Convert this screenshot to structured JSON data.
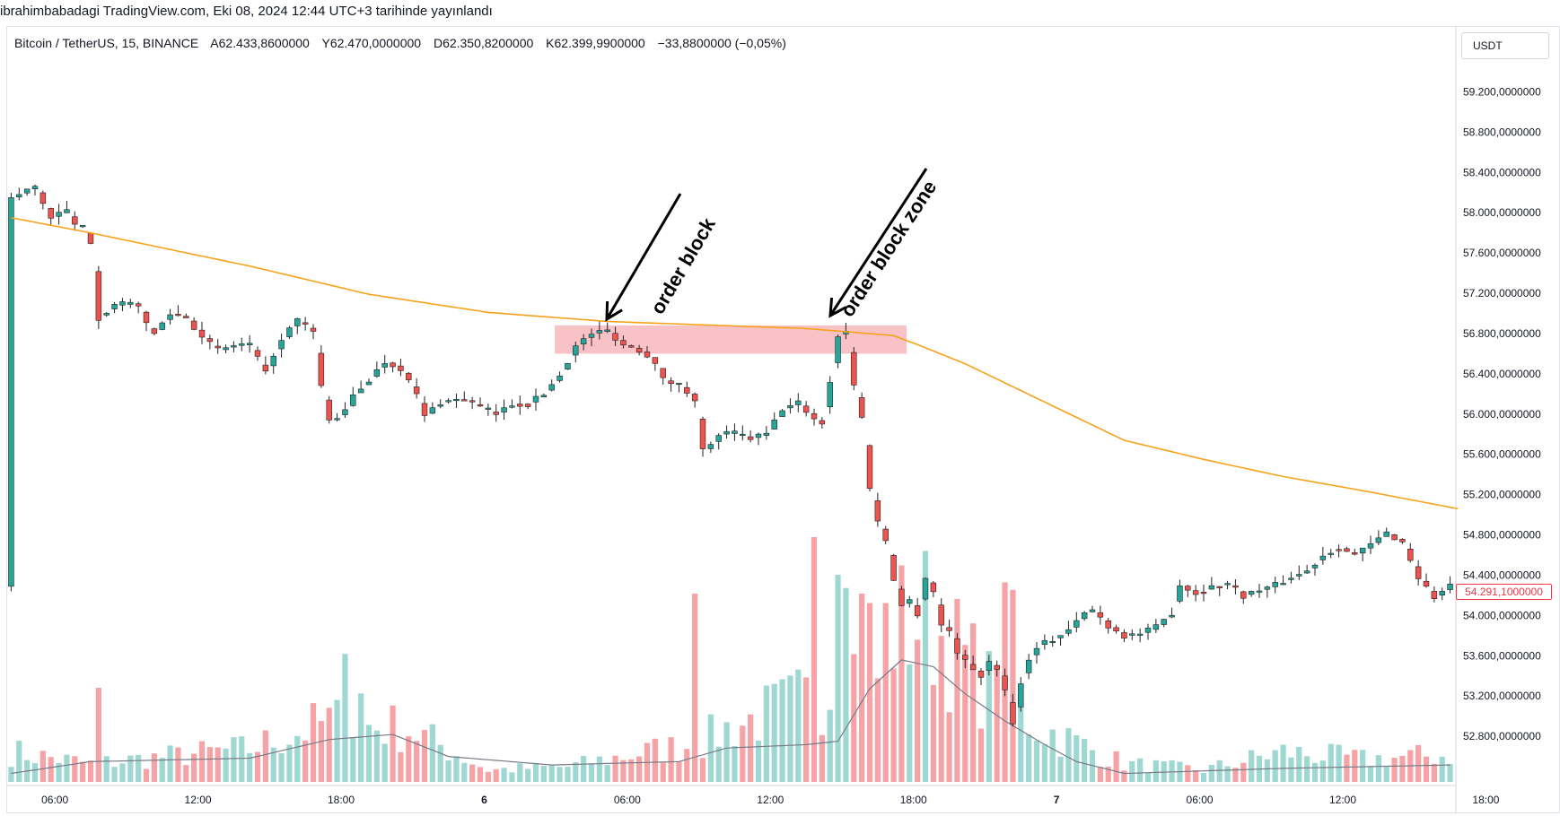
{
  "publication": "ibrahimbabadagi TradingView.com, Eki 08, 2024 12:44 UTC+3 tarihinde yayınlandı",
  "header": {
    "symbol": "Bitcoin / TetherUS, 15, BINANCE",
    "open": "A62.433,8600000",
    "high": "Y62.470,0000000",
    "low": "D62.350,8200000",
    "close": "K62.399,9900000",
    "change": "−33,8800000 (−0,05%)"
  },
  "price_unit": "USDT",
  "last_price_label": "54.291,1000000",
  "colors": {
    "up": "#26a69a",
    "down": "#ef5350",
    "ma": "#f7a21b",
    "zone": "#f8b7bd",
    "volume_up": "#9fd8d2",
    "volume_down": "#f5a3a7",
    "volume_ma": "#787b86"
  },
  "chart_data": {
    "type": "candlestick",
    "price_axis": {
      "ticks": [
        59200,
        58800,
        58400,
        58000,
        57600,
        57200,
        56800,
        56400,
        56000,
        55600,
        55200,
        54800,
        54400,
        54000,
        53600,
        53200,
        52800
      ],
      "tick_labels": [
        "59.200,0000000",
        "58.800,0000000",
        "58.400,0000000",
        "58.000,0000000",
        "57.600,0000000",
        "57.200,0000000",
        "56.800,0000000",
        "56.400,0000000",
        "56.000,0000000",
        "55.600,0000000",
        "55.200,0000000",
        "54.800,0000000",
        "54.400,0000000",
        "54.000,0000000",
        "53.600,0000000",
        "53.200,0000000",
        "52.800,0000000"
      ]
    },
    "time_axis": {
      "labels": [
        "06:00",
        "12:00",
        "18:00",
        "6",
        "06:00",
        "12:00",
        "18:00",
        "7",
        "06:00",
        "12:00",
        "18:00"
      ]
    },
    "price_path": [
      [
        0,
        58140
      ],
      [
        3,
        58260
      ],
      [
        5,
        57950
      ],
      [
        7,
        58020
      ],
      [
        8,
        57870
      ],
      [
        9,
        57850
      ],
      [
        10,
        57720
      ],
      [
        11,
        56960
      ],
      [
        13,
        57080
      ],
      [
        16,
        57100
      ],
      [
        17,
        56880
      ],
      [
        18,
        56800
      ],
      [
        20,
        57000
      ],
      [
        22,
        56960
      ],
      [
        24,
        56780
      ],
      [
        26,
        56630
      ],
      [
        28,
        56680
      ],
      [
        30,
        56690
      ],
      [
        32,
        56400
      ],
      [
        33,
        56600
      ],
      [
        35,
        56840
      ],
      [
        36,
        56930
      ],
      [
        38,
        56820
      ],
      [
        39,
        56280
      ],
      [
        40,
        55930
      ],
      [
        42,
        56020
      ],
      [
        43,
        56180
      ],
      [
        45,
        56340
      ],
      [
        47,
        56520
      ],
      [
        49,
        56460
      ],
      [
        51,
        56190
      ],
      [
        52,
        55980
      ],
      [
        54,
        56120
      ],
      [
        57,
        56150
      ],
      [
        59,
        56070
      ],
      [
        61,
        56000
      ],
      [
        63,
        56100
      ],
      [
        65,
        56100
      ],
      [
        67,
        56200
      ],
      [
        69,
        56390
      ],
      [
        71,
        56670
      ],
      [
        73,
        56800
      ],
      [
        75,
        56830
      ],
      [
        77,
        56690
      ],
      [
        79,
        56640
      ],
      [
        81,
        56530
      ],
      [
        82,
        56340
      ],
      [
        84,
        56290
      ],
      [
        86,
        56160
      ],
      [
        87,
        55640
      ],
      [
        88,
        55680
      ],
      [
        89,
        55800
      ],
      [
        91,
        55810
      ],
      [
        93,
        55760
      ],
      [
        95,
        55800
      ],
      [
        97,
        56050
      ],
      [
        99,
        56110
      ],
      [
        101,
        55960
      ],
      [
        102,
        55900
      ],
      [
        103,
        56330
      ],
      [
        104,
        56780
      ],
      [
        105,
        56820
      ],
      [
        106,
        56300
      ],
      [
        107,
        55960
      ],
      [
        108,
        55280
      ],
      [
        109,
        54930
      ],
      [
        110,
        54750
      ],
      [
        111,
        54370
      ],
      [
        112,
        54100
      ],
      [
        113,
        54150
      ],
      [
        114,
        54020
      ],
      [
        115,
        54380
      ],
      [
        116,
        54240
      ],
      [
        117,
        53900
      ],
      [
        118,
        53850
      ],
      [
        119,
        53650
      ],
      [
        120,
        53540
      ],
      [
        122,
        53410
      ],
      [
        123,
        53520
      ],
      [
        124,
        53480
      ],
      [
        125,
        53280
      ],
      [
        126,
        52920
      ],
      [
        127,
        53350
      ],
      [
        128,
        53550
      ],
      [
        129,
        53700
      ],
      [
        131,
        53760
      ],
      [
        133,
        53850
      ],
      [
        135,
        54020
      ],
      [
        136,
        54060
      ],
      [
        138,
        53900
      ],
      [
        140,
        53800
      ],
      [
        142,
        53820
      ],
      [
        144,
        53880
      ],
      [
        146,
        54030
      ],
      [
        147,
        54310
      ],
      [
        149,
        54220
      ],
      [
        151,
        54280
      ],
      [
        153,
        54320
      ],
      [
        155,
        54200
      ],
      [
        157,
        54250
      ],
      [
        159,
        54300
      ],
      [
        161,
        54380
      ],
      [
        163,
        54440
      ],
      [
        165,
        54600
      ],
      [
        167,
        54680
      ],
      [
        169,
        54600
      ],
      [
        171,
        54700
      ],
      [
        173,
        54820
      ],
      [
        175,
        54730
      ],
      [
        177,
        54380
      ],
      [
        179,
        54180
      ],
      [
        181,
        54290
      ]
    ],
    "moving_average": [
      [
        0,
        57950
      ],
      [
        10,
        57800
      ],
      [
        30,
        57470
      ],
      [
        45,
        57190
      ],
      [
        60,
        57010
      ],
      [
        75,
        56920
      ],
      [
        100,
        56850
      ],
      [
        111,
        56780
      ],
      [
        114,
        56690
      ],
      [
        120,
        56500
      ],
      [
        130,
        56120
      ],
      [
        140,
        55740
      ],
      [
        150,
        55550
      ],
      [
        160,
        55380
      ],
      [
        170,
        55240
      ],
      [
        182,
        55060
      ]
    ],
    "volume_path": [
      [
        0,
        0.2
      ],
      [
        10,
        0.12
      ],
      [
        30,
        0.22
      ],
      [
        40,
        0.4
      ],
      [
        50,
        0.35
      ],
      [
        60,
        0.08
      ],
      [
        70,
        0.1
      ],
      [
        80,
        0.2
      ],
      [
        86,
        0.25
      ],
      [
        90,
        0.35
      ],
      [
        100,
        0.55
      ],
      [
        105,
        0.7
      ],
      [
        110,
        1.0
      ],
      [
        115,
        1.1
      ],
      [
        120,
        0.8
      ],
      [
        125,
        0.5
      ],
      [
        130,
        0.35
      ],
      [
        140,
        0.12
      ],
      [
        150,
        0.08
      ],
      [
        160,
        0.2
      ],
      [
        170,
        0.15
      ],
      [
        181,
        0.18
      ]
    ],
    "volume_ma": [
      [
        0,
        0.05
      ],
      [
        10,
        0.12
      ],
      [
        30,
        0.14
      ],
      [
        40,
        0.25
      ],
      [
        48,
        0.28
      ],
      [
        55,
        0.15
      ],
      [
        68,
        0.1
      ],
      [
        84,
        0.12
      ],
      [
        90,
        0.2
      ],
      [
        100,
        0.22
      ],
      [
        104,
        0.24
      ],
      [
        108,
        0.55
      ],
      [
        112,
        0.72
      ],
      [
        116,
        0.68
      ],
      [
        120,
        0.52
      ],
      [
        125,
        0.36
      ],
      [
        130,
        0.22
      ],
      [
        134,
        0.12
      ],
      [
        140,
        0.05
      ],
      [
        160,
        0.08
      ],
      [
        181,
        0.1
      ]
    ],
    "volume_spikes": [
      [
        11,
        0.5
      ],
      [
        42,
        0.68
      ],
      [
        44,
        0.47
      ],
      [
        86,
        1.0
      ],
      [
        101,
        1.3
      ],
      [
        104,
        1.1
      ],
      [
        105,
        1.03
      ],
      [
        107,
        1.0
      ],
      [
        108,
        0.95
      ],
      [
        109,
        0.55
      ],
      [
        124,
        0.62
      ],
      [
        125,
        1.06
      ],
      [
        126,
        1.02
      ]
    ],
    "ylim": [
      52650,
      59400
    ]
  },
  "annotations": [
    {
      "label": "order block",
      "target_price": 56850
    },
    {
      "label": "order block zone",
      "target_price": 56850
    }
  ],
  "zone": {
    "top": 56880,
    "bottom": 56600
  }
}
